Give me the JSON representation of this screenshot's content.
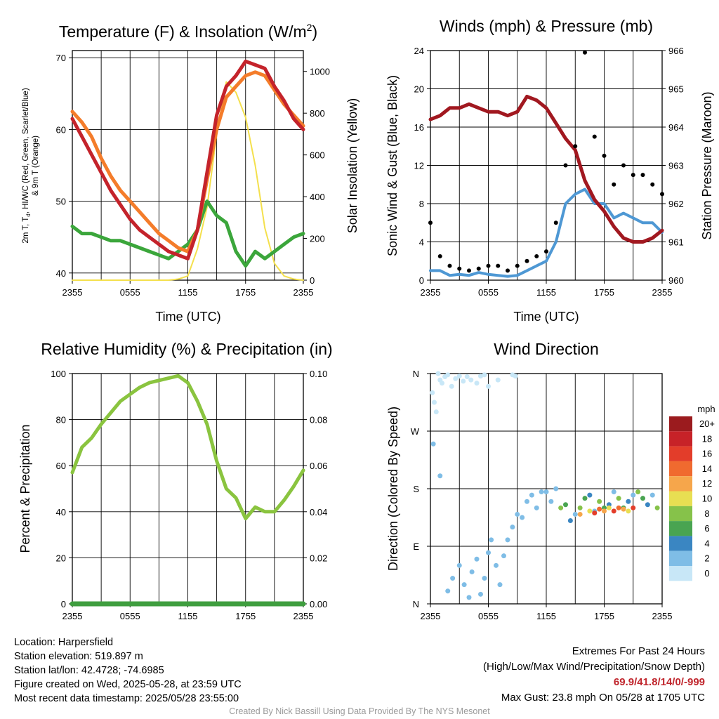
{
  "colors": {
    "temp_red": "#c4232b",
    "temp_orange": "#f47c2a",
    "heat_scarlet": "#d02020",
    "dewpoint_green": "#3ba63b",
    "solar_yellow": "#f4e04d",
    "wind_blue": "#4e98d4",
    "gust_black": "#000000",
    "pressure_maroon": "#a11820",
    "rh_green": "#8ac43f",
    "precip_green": "#3f9e3f"
  },
  "x_ticks": [
    "2355",
    "0555",
    "1155",
    "1755",
    "2355"
  ],
  "charts": [
    {
      "id": "temp",
      "type": "line",
      "title": "Temperature (F) & Insolation (W/m",
      "title_sup": "2",
      "title_end": ")",
      "xlabel": "Time (UTC)",
      "ylabel_line1": "2m T, T",
      "ylabel_sub": "d",
      "ylabel_line1_end": ", HI/WC (Red, Green, Scarlet/Blue)",
      "ylabel_line2": "& 9m T (Orange)",
      "ylabel_right": "Solar Insolation (Yellow)",
      "ylim": [
        39,
        71
      ],
      "y_ticks": [
        40,
        50,
        60,
        70
      ],
      "ylim_right": [
        0,
        1100
      ],
      "y_ticks_right": [
        0,
        200,
        400,
        600,
        800,
        1000
      ]
    },
    {
      "id": "wind",
      "type": "line",
      "title": "Winds (mph) & Pressure (mb)",
      "xlabel": "Time (UTC)",
      "ylabel": "Sonic Wind & Gust (Blue, Black)",
      "ylabel_right": "Station Pressure (Maroon)",
      "ylim": [
        0,
        24
      ],
      "y_ticks": [
        0,
        4,
        8,
        12,
        16,
        20,
        24
      ],
      "ylim_right": [
        960,
        966
      ],
      "y_ticks_right": [
        960,
        961,
        962,
        963,
        964,
        965,
        966
      ]
    },
    {
      "id": "rh",
      "type": "line",
      "title": "Relative Humidity (%) & Precipitation (in)",
      "ylabel": "Percent & Precipitation",
      "ylim": [
        0,
        100
      ],
      "y_ticks": [
        0,
        20,
        40,
        60,
        80,
        100
      ],
      "ylim_right": [
        0,
        0.1
      ],
      "y_ticks_right": [
        "0.00",
        "0.02",
        "0.04",
        "0.06",
        "0.08",
        "0.10"
      ]
    },
    {
      "id": "dir",
      "type": "scatter",
      "title": "Wind Direction",
      "ylabel": "Direction (Colored By Speed)",
      "y_ticks": [
        "N",
        "E",
        "S",
        "W",
        "N"
      ]
    }
  ],
  "chart_data": [
    {
      "type": "line",
      "x_hours": [
        0,
        1,
        2,
        3,
        4,
        5,
        6,
        7,
        8,
        9,
        10,
        11,
        12,
        13,
        14,
        15,
        16,
        17,
        18,
        19,
        20,
        21,
        22,
        23,
        24
      ],
      "series": [
        {
          "name": "2m T",
          "color": "temp_red",
          "values": [
            61.5,
            59,
            56.5,
            54,
            51.5,
            49.5,
            47.5,
            46,
            45,
            44,
            43,
            42.5,
            42,
            46,
            54,
            62,
            66,
            67.5,
            69.5,
            69,
            68.5,
            66,
            64,
            61.5,
            60
          ]
        },
        {
          "name": "9m T",
          "color": "temp_orange",
          "values": [
            62.5,
            61,
            59,
            56,
            53.5,
            51.5,
            50,
            48.5,
            47,
            45.5,
            44.5,
            43.5,
            43,
            46,
            53,
            60,
            64.5,
            66,
            67.5,
            68,
            67.5,
            65.5,
            63.5,
            62,
            60.5
          ]
        },
        {
          "name": "Td",
          "color": "dewpoint_green",
          "values": [
            46.5,
            45.5,
            45.5,
            45,
            44.5,
            44.5,
            44,
            43.5,
            43,
            42.5,
            42,
            43,
            44,
            46,
            50,
            48,
            47,
            43,
            41,
            43,
            42,
            43,
            44,
            45,
            45.5
          ]
        },
        {
          "name": "Insolation",
          "color": "solar_yellow",
          "axis": "right",
          "values": [
            0,
            0,
            0,
            0,
            0,
            0,
            0,
            0,
            0,
            0,
            0,
            5,
            20,
            150,
            350,
            700,
            950,
            900,
            780,
            550,
            250,
            80,
            20,
            5,
            0
          ]
        }
      ]
    },
    {
      "type": "line",
      "x_hours": [
        0,
        1,
        2,
        3,
        4,
        5,
        6,
        7,
        8,
        9,
        10,
        11,
        12,
        13,
        14,
        15,
        16,
        17,
        18,
        19,
        20,
        21,
        22,
        23,
        24
      ],
      "series": [
        {
          "name": "Wind",
          "color": "wind_blue",
          "values": [
            1,
            1,
            0.5,
            0.6,
            0.5,
            0.8,
            0.6,
            0.5,
            0.4,
            0.5,
            1,
            1.5,
            2,
            4,
            8,
            9,
            9.5,
            8,
            8,
            6.5,
            7,
            6.5,
            6,
            6,
            5
          ]
        },
        {
          "name": "Gust",
          "color": "gust_black",
          "values": [
            6,
            2.5,
            1.5,
            1.2,
            1,
            1.2,
            1.5,
            1.5,
            1,
            1.5,
            2,
            2.5,
            3,
            6,
            12,
            14,
            23.8,
            15,
            13,
            10,
            12,
            11,
            11,
            10,
            9
          ]
        },
        {
          "name": "Pressure",
          "color": "pressure_maroon",
          "axis": "right",
          "values": [
            964.2,
            964.3,
            964.5,
            964.5,
            964.6,
            964.5,
            964.4,
            964.4,
            964.3,
            964.4,
            964.8,
            964.7,
            964.5,
            964.1,
            963.7,
            963.4,
            962.6,
            962.1,
            961.8,
            961.4,
            961.1,
            961,
            961,
            961.1,
            961.3
          ]
        }
      ]
    },
    {
      "type": "line",
      "x_hours": [
        0,
        1,
        2,
        3,
        4,
        5,
        6,
        7,
        8,
        9,
        10,
        11,
        12,
        13,
        14,
        15,
        16,
        17,
        18,
        19,
        20,
        21,
        22,
        23,
        24
      ],
      "series": [
        {
          "name": "RH",
          "color": "rh_green",
          "values": [
            57,
            68,
            72,
            78,
            83,
            88,
            91,
            94,
            96,
            97,
            98,
            99,
            96,
            88,
            78,
            62,
            50,
            46,
            37,
            42,
            40,
            40,
            45,
            51,
            58
          ]
        },
        {
          "name": "Precip",
          "color": "precip_green",
          "axis": "right",
          "values": [
            0,
            0,
            0,
            0,
            0,
            0,
            0,
            0,
            0,
            0,
            0,
            0,
            0,
            0,
            0,
            0,
            0,
            0,
            0,
            0,
            0,
            0,
            0,
            0,
            0
          ]
        }
      ]
    },
    {
      "type": "scatter",
      "series": [
        {
          "name": "early-light",
          "points": [
            [
              0.2,
              330
            ],
            [
              0.4,
              315
            ],
            [
              0.6,
              300
            ],
            [
              0.8,
              360
            ],
            [
              1,
              350
            ],
            [
              1.2,
              345
            ],
            [
              1.5,
              355
            ],
            [
              1.8,
              358
            ],
            [
              2.2,
              340
            ],
            [
              2.6,
              352
            ],
            [
              3,
              356
            ],
            [
              3.4,
              348
            ],
            [
              3.8,
              355
            ],
            [
              4.2,
              350
            ],
            [
              4.8,
              345
            ],
            [
              5.2,
              356
            ],
            [
              5.6,
              358
            ],
            [
              6,
              340
            ],
            [
              7,
              350
            ],
            [
              8.5,
              358
            ],
            [
              8.8,
              356
            ]
          ]
        },
        {
          "name": "low-speed",
          "points": [
            [
              0.3,
              250
            ],
            [
              1,
              200
            ],
            [
              1.8,
              20
            ],
            [
              2.3,
              40
            ],
            [
              3,
              60
            ],
            [
              3.5,
              30
            ],
            [
              4,
              10
            ],
            [
              4.3,
              50
            ],
            [
              4.8,
              70
            ],
            [
              5.2,
              15
            ],
            [
              5.6,
              40
            ],
            [
              6,
              80
            ],
            [
              6.3,
              100
            ],
            [
              6.8,
              60
            ],
            [
              7.2,
              30
            ],
            [
              7.6,
              75
            ],
            [
              8,
              100
            ],
            [
              8.5,
              120
            ],
            [
              9,
              140
            ],
            [
              9.5,
              135
            ],
            [
              10,
              160
            ],
            [
              10.5,
              170
            ],
            [
              11,
              150
            ],
            [
              11.5,
              175
            ],
            [
              12,
              175
            ],
            [
              12.5,
              160
            ],
            [
              13,
              180
            ]
          ]
        },
        {
          "name": "mid-speed",
          "points": [
            [
              13.5,
              150
            ],
            [
              14,
              155
            ],
            [
              14.5,
              130
            ],
            [
              15,
              140
            ],
            [
              15.5,
              150
            ],
            [
              16,
              165
            ],
            [
              16.5,
              170
            ],
            [
              17,
              145
            ],
            [
              17.5,
              160
            ],
            [
              18,
              150
            ],
            [
              18.5,
              155
            ],
            [
              19,
              175
            ],
            [
              19.5,
              165
            ],
            [
              20,
              150
            ],
            [
              20.5,
              160
            ],
            [
              21,
              170
            ],
            [
              21.5,
              175
            ],
            [
              22,
              165
            ],
            [
              22.5,
              155
            ],
            [
              23,
              170
            ],
            [
              23.5,
              150
            ]
          ]
        },
        {
          "name": "high-speed",
          "points": [
            [
              15.5,
              140
            ],
            [
              16.5,
              145
            ],
            [
              17,
              142
            ],
            [
              17.5,
              148
            ],
            [
              18,
              145
            ],
            [
              18.5,
              150
            ],
            [
              19,
              145
            ],
            [
              19.5,
              150
            ],
            [
              20,
              148
            ],
            [
              20.5,
              145
            ],
            [
              21,
              150
            ]
          ]
        }
      ]
    }
  ],
  "legend": {
    "title": "mph",
    "labels": [
      "20+",
      "18",
      "16",
      "14",
      "12",
      "10",
      "8",
      "6",
      "4",
      "2",
      "0"
    ],
    "colors": [
      "#9b1b1e",
      "#c72228",
      "#e33d2a",
      "#f06a2f",
      "#f6a64b",
      "#e8df52",
      "#86c24a",
      "#49a451",
      "#3a86c2",
      "#7fbde6",
      "#c8e7f7"
    ]
  },
  "info": {
    "location": "Location: Harpersfield",
    "elevation": "Station elevation: 519.897 m",
    "latlon": "Station lat/lon: 42.4728; -74.6985",
    "created": "Figure created on Wed, 2025-05-28, at 23:59 UTC",
    "recent": "Most recent data timestamp: 2025/05/28 23:55:00"
  },
  "extremes": {
    "heading": "Extremes For Past 24 Hours",
    "subheading": "(High/Low/Max Wind/Precipitation/Snow Depth)",
    "values": "69.9/41.8/14/0/-999",
    "gust": "Max Gust: 23.8 mph On 05/28 at 1705 UTC"
  },
  "credit": "Created By Nick Bassill Using Data Provided By The NYS Mesonet"
}
